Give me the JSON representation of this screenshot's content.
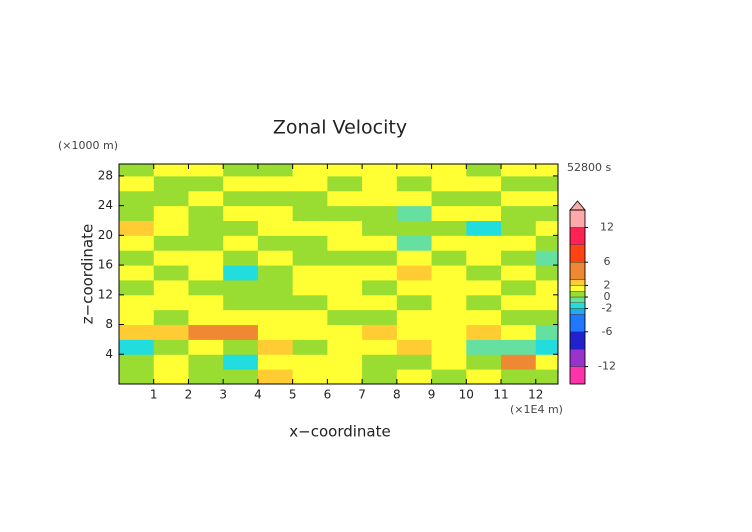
{
  "chart_data": {
    "type": "contour",
    "title": "Zonal Velocity",
    "xlabel": "x−coordinate",
    "ylabel": "z−coordinate",
    "x_unit": "(×1E4 m)",
    "y_unit": "(×1000 m)",
    "time_label": "52800 s",
    "xlim": [
      0,
      12.64
    ],
    "ylim": [
      0,
      29.6
    ],
    "xticks": [
      1,
      2,
      3,
      4,
      5,
      6,
      7,
      8,
      9,
      10,
      11,
      12
    ],
    "yticks": [
      4,
      8,
      12,
      16,
      20,
      24,
      28
    ],
    "x": [
      0.5,
      1.5,
      2.5,
      3.5,
      4.5,
      5.5,
      6.5,
      7.5,
      8.5,
      9.5,
      10.5,
      11.5,
      12.5
    ],
    "y": [
      1,
      3,
      5,
      7,
      9,
      11,
      13,
      15,
      17,
      19,
      21,
      23,
      25,
      27,
      29
    ],
    "values": [
      [
        0.5,
        1.5,
        0.5,
        0.5,
        2.5,
        1.5,
        1.5,
        0.5,
        1.5,
        0.5,
        1.5,
        0.5,
        0.5
      ],
      [
        0.5,
        1.5,
        0.5,
        -1.5,
        1.5,
        1.5,
        1.5,
        0.5,
        0.5,
        1.5,
        0.5,
        3.5,
        1.5
      ],
      [
        -1.5,
        0.5,
        1.5,
        0.5,
        2.5,
        0.5,
        1.5,
        1.5,
        2.5,
        1.5,
        -0.5,
        -0.5,
        -1.5
      ],
      [
        2.5,
        2.5,
        3.5,
        3.5,
        1.5,
        1.5,
        1.5,
        2.5,
        1.5,
        1.5,
        2.5,
        1.5,
        -0.5
      ],
      [
        1.5,
        0.5,
        1.5,
        1.5,
        1.5,
        1.5,
        0.5,
        0.5,
        1.5,
        1.5,
        1.5,
        0.5,
        0.5
      ],
      [
        1.5,
        1.5,
        1.5,
        0.5,
        0.5,
        0.5,
        1.5,
        1.5,
        0.5,
        1.5,
        0.5,
        1.5,
        1.5
      ],
      [
        0.5,
        1.5,
        0.5,
        0.5,
        0.5,
        1.5,
        1.5,
        0.5,
        1.5,
        1.5,
        1.5,
        0.5,
        1.5
      ],
      [
        1.5,
        0.5,
        1.5,
        -1.5,
        0.5,
        1.5,
        1.5,
        1.5,
        2.5,
        1.5,
        0.5,
        1.5,
        0.5
      ],
      [
        0.5,
        1.5,
        1.5,
        0.5,
        1.5,
        0.5,
        0.5,
        0.5,
        1.5,
        0.5,
        1.5,
        0.5,
        -0.5
      ],
      [
        1.5,
        0.5,
        0.5,
        1.5,
        0.5,
        0.5,
        1.5,
        1.5,
        -0.5,
        1.5,
        1.5,
        1.5,
        0.5
      ],
      [
        2.5,
        1.5,
        0.5,
        0.5,
        1.5,
        1.5,
        1.5,
        0.5,
        0.5,
        0.5,
        -1.5,
        0.5,
        1.5
      ],
      [
        0.5,
        1.5,
        0.5,
        1.5,
        1.5,
        0.5,
        0.5,
        0.5,
        -0.5,
        1.5,
        1.5,
        0.5,
        0.5
      ],
      [
        0.5,
        0.5,
        1.5,
        0.5,
        0.5,
        0.5,
        1.5,
        1.5,
        1.5,
        0.5,
        0.5,
        1.5,
        1.5
      ],
      [
        1.5,
        0.5,
        0.5,
        1.5,
        1.5,
        1.5,
        0.5,
        1.5,
        0.5,
        1.5,
        1.5,
        0.5,
        0.5
      ],
      [
        0.5,
        1.5,
        1.5,
        0.5,
        0.5,
        1.5,
        1.5,
        1.5,
        1.5,
        1.5,
        0.5,
        1.5,
        1.5
      ]
    ],
    "levels": [
      -15,
      -12,
      -9,
      -6,
      -3,
      -2,
      -1,
      0,
      1,
      2,
      3,
      6,
      9,
      12,
      15
    ],
    "colors": [
      "#ff33aa",
      "#9933cc",
      "#2222cc",
      "#2277ff",
      "#22aaee",
      "#22dddd",
      "#66e0a0",
      "#99dd33",
      "#ffff33",
      "#ffcc33",
      "#ee8833",
      "#ff4411",
      "#ff2255",
      "#ffaaaa"
    ],
    "colorbar_lim": [
      -15,
      15
    ],
    "colorbar_ticks": [
      12,
      6,
      2,
      0,
      -2,
      -6,
      -12
    ]
  }
}
